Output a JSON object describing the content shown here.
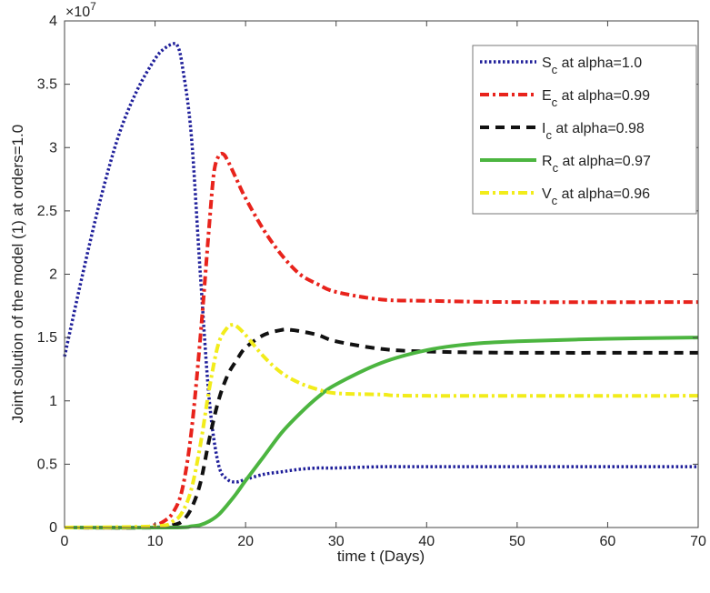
{
  "chart_data": {
    "type": "line",
    "title": "",
    "xlabel": "time t (Days)",
    "ylabel": "Joint solution of the model (1) at orders=1.0",
    "y_exponent_label": "×10",
    "y_exponent_power": "7",
    "xlim": [
      0,
      70
    ],
    "ylim": [
      0,
      4
    ],
    "xticks": [
      0,
      10,
      20,
      30,
      40,
      50,
      60,
      70
    ],
    "yticks": [
      0,
      0.5,
      1,
      1.5,
      2,
      2.5,
      3,
      3.5,
      4
    ],
    "ytick_labels": [
      "0",
      "0.5",
      "1",
      "1.5",
      "2",
      "2.5",
      "3",
      "3.5",
      "4"
    ],
    "grid": false,
    "legend_position": "top-right",
    "series": [
      {
        "name": "S",
        "sub": "c",
        "label_suffix": " at alpha=1.0",
        "color": "#1f1f9a",
        "style": "dotted",
        "x": [
          0,
          2,
          4,
          6,
          8,
          10,
          11,
          12,
          12.5,
          13,
          14,
          15,
          16,
          17,
          18,
          19,
          20,
          22,
          24,
          26,
          28,
          30,
          35,
          40,
          50,
          70
        ],
        "y": [
          1.35,
          2.0,
          2.6,
          3.1,
          3.45,
          3.7,
          3.78,
          3.82,
          3.8,
          3.65,
          3.1,
          2.0,
          1.0,
          0.5,
          0.38,
          0.36,
          0.38,
          0.42,
          0.44,
          0.46,
          0.47,
          0.47,
          0.48,
          0.48,
          0.48,
          0.48
        ]
      },
      {
        "name": "E",
        "sub": "c",
        "label_suffix": " at alpha=0.99",
        "color": "#e8231c",
        "style": "dashdot",
        "x": [
          0,
          8,
          10,
          11,
          12,
          13,
          14,
          15,
          16,
          16.5,
          17,
          17.5,
          18,
          19,
          20,
          22,
          24,
          26,
          28,
          30,
          35,
          40,
          50,
          70
        ],
        "y": [
          0,
          0,
          0.02,
          0.05,
          0.12,
          0.3,
          0.75,
          1.5,
          2.4,
          2.8,
          2.93,
          2.95,
          2.9,
          2.75,
          2.6,
          2.35,
          2.15,
          2.0,
          1.92,
          1.86,
          1.8,
          1.79,
          1.78,
          1.78
        ]
      },
      {
        "name": "I",
        "sub": "c",
        "label_suffix": " at alpha=0.98",
        "color": "#111111",
        "style": "dashed",
        "x": [
          0,
          10,
          12,
          13,
          14,
          15,
          16,
          17,
          18,
          19,
          20,
          22,
          24,
          25,
          26,
          28,
          30,
          35,
          40,
          50,
          70
        ],
        "y": [
          0,
          0,
          0.02,
          0.05,
          0.15,
          0.35,
          0.7,
          1.0,
          1.2,
          1.32,
          1.42,
          1.52,
          1.56,
          1.56,
          1.55,
          1.52,
          1.47,
          1.41,
          1.39,
          1.38,
          1.38
        ]
      },
      {
        "name": "R",
        "sub": "c",
        "label_suffix": " at alpha=0.97",
        "color": "#4cb540",
        "style": "solid",
        "x": [
          0,
          12,
          14,
          15,
          16,
          17,
          18,
          19,
          20,
          22,
          24,
          26,
          28,
          30,
          35,
          40,
          45,
          50,
          60,
          70
        ],
        "y": [
          0,
          0,
          0.01,
          0.02,
          0.05,
          0.1,
          0.18,
          0.27,
          0.37,
          0.56,
          0.75,
          0.9,
          1.03,
          1.13,
          1.3,
          1.4,
          1.45,
          1.47,
          1.49,
          1.5
        ]
      },
      {
        "name": "V",
        "sub": "c",
        "label_suffix": " at alpha=0.96",
        "color": "#f2ec1b",
        "style": "dashdot",
        "x": [
          0,
          10,
          12,
          13,
          14,
          15,
          16,
          17,
          18,
          18.5,
          19,
          20,
          22,
          24,
          26,
          28,
          30,
          35,
          40,
          70
        ],
        "y": [
          0,
          0.01,
          0.05,
          0.12,
          0.3,
          0.65,
          1.1,
          1.45,
          1.58,
          1.6,
          1.59,
          1.52,
          1.35,
          1.22,
          1.14,
          1.09,
          1.06,
          1.05,
          1.04,
          1.04
        ]
      }
    ]
  }
}
